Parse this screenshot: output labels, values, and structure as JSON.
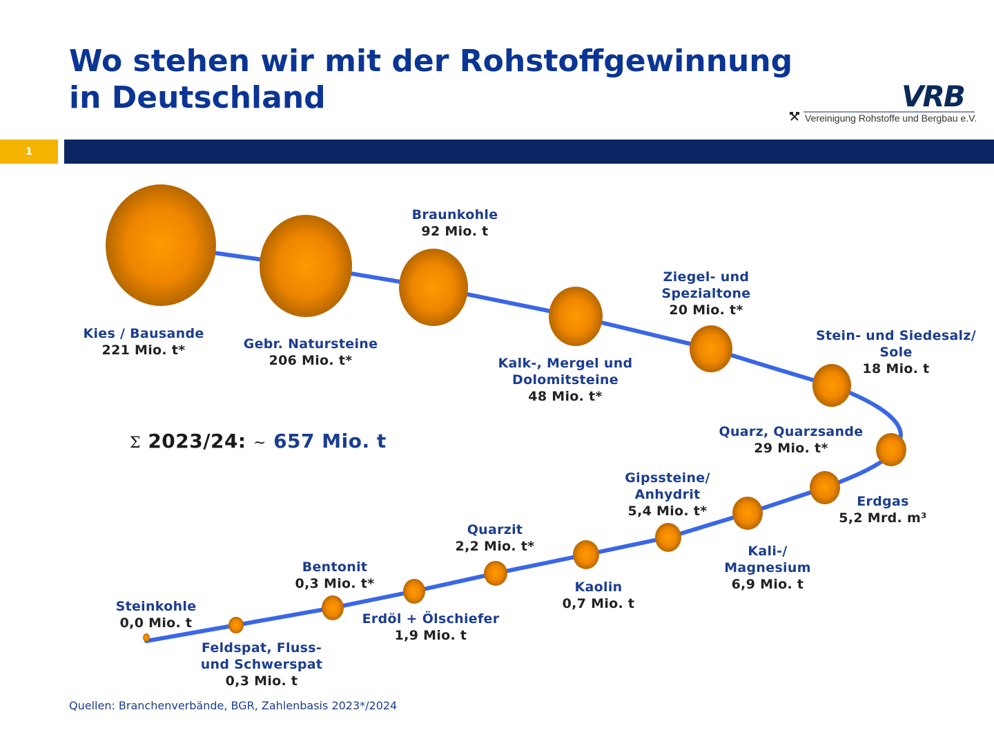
{
  "title": {
    "line1": "Wo stehen wir mit der Rohstoffgewinnung",
    "line2": "in Deutschland"
  },
  "logo": {
    "text": "VRB",
    "organization": "Vereinigung Rohstoffe und Bergbau e.V.",
    "icon": "hammer-pick-icon"
  },
  "slide_number": "1",
  "colors": {
    "title": "#0b3594",
    "bar": "#0b2462",
    "slide_number_bg": "#f5b400",
    "curve": "#3a67e6",
    "bubble": "#ff9500",
    "label_name": "#1b3d8f"
  },
  "summary": {
    "symbol": "Σ",
    "year": "2023/24:",
    "approx": "~",
    "value": "657 Mio. t"
  },
  "items": [
    {
      "name": [
        "Kies / Bausande"
      ],
      "value": "221 Mio. t*"
    },
    {
      "name": [
        "Gebr. Natursteine"
      ],
      "value": "206 Mio. t*"
    },
    {
      "name": [
        "Braunkohle"
      ],
      "value": "92 Mio. t"
    },
    {
      "name": [
        "Kalk-, Mergel und",
        "Dolomitsteine"
      ],
      "value": "48 Mio. t*"
    },
    {
      "name": [
        "Ziegel- und",
        "Spezialtone"
      ],
      "value": "20 Mio. t*"
    },
    {
      "name": [
        "Stein- und Siedesalz/",
        "Sole"
      ],
      "value": "18 Mio. t"
    },
    {
      "name": [
        "Quarz, Quarzsande"
      ],
      "value": "29 Mio. t*"
    },
    {
      "name": [
        "Erdgas"
      ],
      "value": "5,2 Mrd. m³"
    },
    {
      "name": [
        "Kali-/",
        "Magnesium"
      ],
      "value": "6,9 Mio. t"
    },
    {
      "name": [
        "Gipssteine/",
        "Anhydrit"
      ],
      "value": "5,4 Mio. t*"
    },
    {
      "name": [
        "Kaolin"
      ],
      "value": "0,7 Mio. t"
    },
    {
      "name": [
        "Quarzit"
      ],
      "value": "2,2 Mio. t*"
    },
    {
      "name": [
        "Erdöl + Ölschiefer"
      ],
      "value": "1,9 Mio. t"
    },
    {
      "name": [
        "Bentonit"
      ],
      "value": "0,3 Mio. t*"
    },
    {
      "name": [
        "Feldspat, Fluss-",
        "und Schwerspat"
      ],
      "value": "0,3 Mio. t"
    },
    {
      "name": [
        "Steinkohle"
      ],
      "value": "0,0 Mio. t"
    }
  ],
  "source": "Quellen: Branchenverbände, BGR, Zahlenbasis 2023*/2024"
}
